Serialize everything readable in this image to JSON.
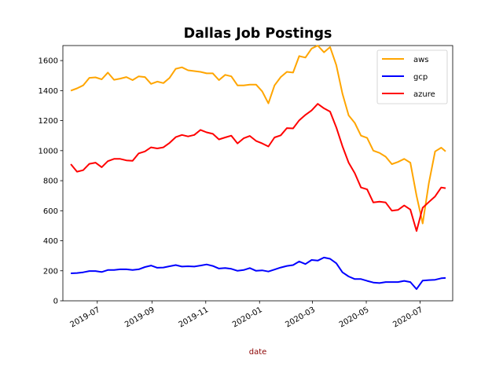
{
  "chart_data": {
    "type": "line",
    "title": "Dallas Job Postings",
    "xlabel": "date",
    "xlabel_color": "#8b0000",
    "ylabel": "",
    "ylim": [
      0,
      1700
    ],
    "yticks": [
      0,
      200,
      400,
      600,
      800,
      1000,
      1200,
      1400,
      1600
    ],
    "xlim": [
      "2019-05-23",
      "2020-08-07"
    ],
    "xticks": [
      {
        "date": "2019-07-01",
        "label": "2019-07"
      },
      {
        "date": "2019-09-01",
        "label": "2019-09"
      },
      {
        "date": "2019-11-01",
        "label": "2019-11"
      },
      {
        "date": "2020-01-01",
        "label": "2020-01"
      },
      {
        "date": "2020-03-01",
        "label": "2020-03"
      },
      {
        "date": "2020-05-01",
        "label": "2020-05"
      },
      {
        "date": "2020-07-01",
        "label": "2020-07"
      }
    ],
    "grid": false,
    "legend_position": "top-right",
    "x": [
      "2019-06-01",
      "2019-06-08",
      "2019-06-15",
      "2019-06-22",
      "2019-06-29",
      "2019-07-06",
      "2019-07-13",
      "2019-07-20",
      "2019-07-27",
      "2019-08-03",
      "2019-08-10",
      "2019-08-17",
      "2019-08-24",
      "2019-08-31",
      "2019-09-07",
      "2019-09-14",
      "2019-09-21",
      "2019-09-28",
      "2019-10-05",
      "2019-10-12",
      "2019-10-19",
      "2019-10-26",
      "2019-11-02",
      "2019-11-09",
      "2019-11-16",
      "2019-11-23",
      "2019-11-30",
      "2019-12-07",
      "2019-12-14",
      "2019-12-21",
      "2019-12-28",
      "2020-01-04",
      "2020-01-11",
      "2020-01-18",
      "2020-01-25",
      "2020-02-01",
      "2020-02-08",
      "2020-02-15",
      "2020-02-22",
      "2020-02-29",
      "2020-03-07",
      "2020-03-14",
      "2020-03-21",
      "2020-03-28",
      "2020-04-04",
      "2020-04-11",
      "2020-04-18",
      "2020-04-25",
      "2020-05-02",
      "2020-05-09",
      "2020-05-16",
      "2020-05-23",
      "2020-05-30",
      "2020-06-06",
      "2020-06-13",
      "2020-06-20",
      "2020-06-27",
      "2020-07-04",
      "2020-07-11",
      "2020-07-18",
      "2020-07-25",
      "2020-07-30"
    ],
    "series": [
      {
        "name": "aws",
        "color": "#ffa500",
        "values": [
          1400,
          1415,
          1435,
          1485,
          1488,
          1475,
          1520,
          1472,
          1480,
          1490,
          1470,
          1495,
          1490,
          1445,
          1460,
          1450,
          1485,
          1545,
          1555,
          1535,
          1530,
          1525,
          1515,
          1515,
          1470,
          1505,
          1495,
          1435,
          1435,
          1440,
          1440,
          1395,
          1315,
          1435,
          1490,
          1525,
          1520,
          1630,
          1620,
          1680,
          1700,
          1655,
          1690,
          1570,
          1380,
          1235,
          1185,
          1100,
          1085,
          1000,
          985,
          960,
          910,
          925,
          945,
          920,
          700,
          515,
          785,
          995,
          1020,
          995
        ]
      },
      {
        "name": "gcp",
        "color": "#0000ff",
        "values": [
          183,
          185,
          190,
          198,
          198,
          192,
          205,
          205,
          210,
          210,
          205,
          210,
          225,
          235,
          220,
          222,
          230,
          238,
          228,
          230,
          228,
          235,
          242,
          232,
          215,
          218,
          213,
          200,
          205,
          218,
          200,
          203,
          195,
          208,
          222,
          232,
          238,
          262,
          245,
          272,
          268,
          288,
          280,
          250,
          190,
          162,
          145,
          145,
          133,
          122,
          118,
          125,
          125,
          125,
          133,
          125,
          78,
          135,
          138,
          140,
          150,
          152
        ]
      },
      {
        "name": "azure",
        "color": "#ff0000",
        "values": [
          910,
          860,
          870,
          912,
          920,
          890,
          930,
          945,
          945,
          935,
          932,
          982,
          995,
          1022,
          1015,
          1022,
          1052,
          1090,
          1105,
          1095,
          1105,
          1138,
          1122,
          1112,
          1075,
          1088,
          1100,
          1048,
          1082,
          1098,
          1065,
          1048,
          1028,
          1088,
          1102,
          1150,
          1148,
          1202,
          1238,
          1268,
          1312,
          1282,
          1260,
          1155,
          1030,
          920,
          850,
          755,
          742,
          655,
          660,
          655,
          600,
          605,
          635,
          608,
          465,
          620,
          658,
          695,
          755,
          750
        ]
      }
    ]
  }
}
